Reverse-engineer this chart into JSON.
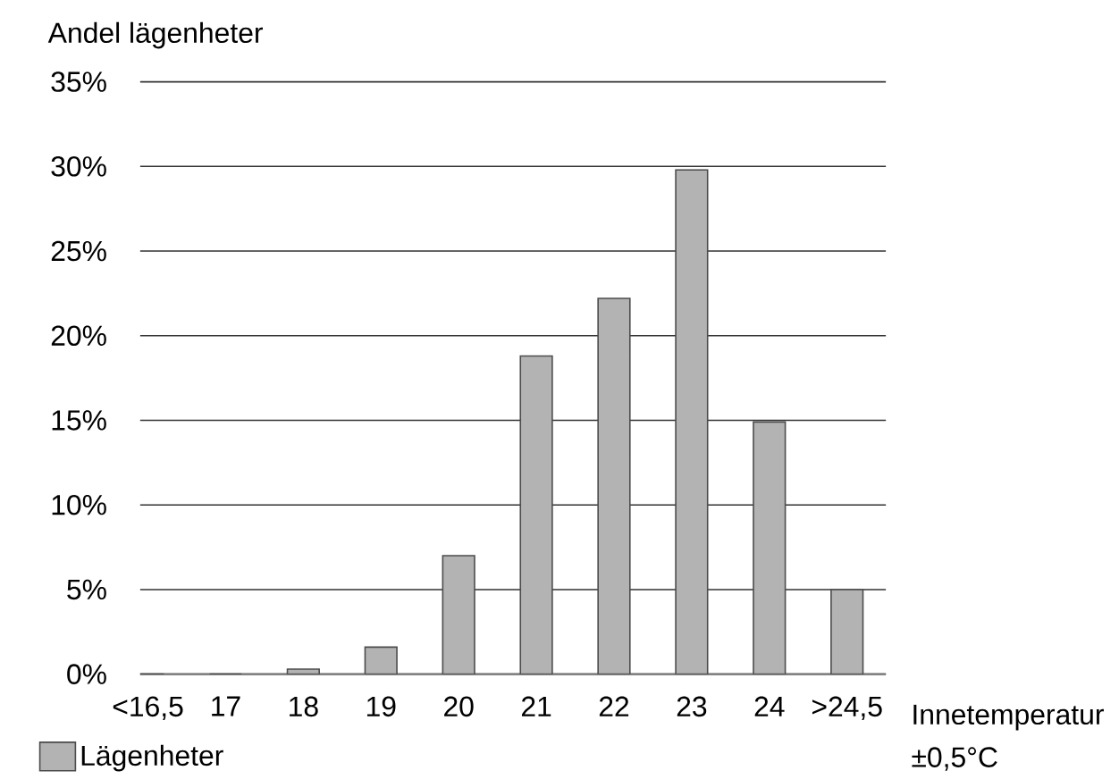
{
  "chart_data": {
    "type": "bar",
    "ylabel": "Andel lägenheter",
    "xlabel": "Innetemperatur ±0,5°C",
    "categories": [
      "<16,5",
      "17",
      "18",
      "19",
      "20",
      "21",
      "22",
      "23",
      "24",
      ">24,5"
    ],
    "series": [
      {
        "name": "Lägenheter",
        "color": "#b3b3b3",
        "values": [
          0,
          0,
          0.3,
          1.6,
          7.0,
          18.8,
          22.2,
          29.8,
          14.9,
          5.0
        ]
      }
    ],
    "ylim": [
      0,
      35
    ],
    "yticks": [
      {
        "value": 0,
        "label": "0%"
      },
      {
        "value": 5,
        "label": "5%"
      },
      {
        "value": 10,
        "label": "10%"
      },
      {
        "value": 15,
        "label": "15%"
      },
      {
        "value": 20,
        "label": "20%"
      },
      {
        "value": 25,
        "label": "25%"
      },
      {
        "value": 30,
        "label": "30%"
      },
      {
        "value": 35,
        "label": "35%"
      }
    ],
    "grid": "y",
    "legend": "bottom left"
  }
}
